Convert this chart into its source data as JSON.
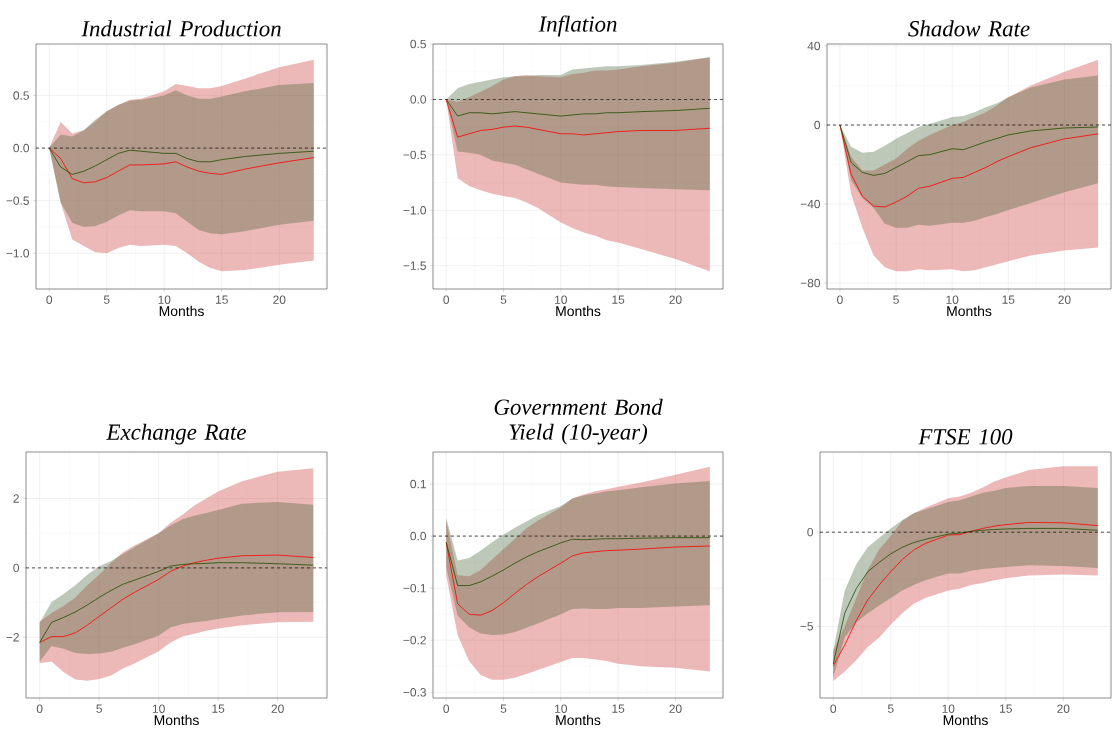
{
  "chart_data": [
    {
      "type": "line",
      "title": "Industrial Production",
      "xlabel": "Months",
      "x": [
        0,
        1,
        2,
        3,
        4,
        5,
        6,
        7,
        8,
        10,
        11,
        12,
        13,
        14,
        15,
        17,
        20,
        23
      ],
      "xlim": [
        -1.15,
        24.15
      ],
      "ylim": [
        -1.34,
        0.99
      ],
      "xticks": [
        0,
        5,
        10,
        15,
        20
      ],
      "yticks": [
        {
          "value": -1,
          "label": "−1.0"
        },
        {
          "value": -0.5,
          "label": "−0.5"
        },
        {
          "value": 0,
          "label": "0.0"
        },
        {
          "value": 0.5,
          "label": "0.5"
        }
      ],
      "grid": true,
      "ref_lines": [
        {
          "axis": "y",
          "value": 0,
          "line_style": "dashed",
          "color": "#000000"
        }
      ],
      "series": [
        {
          "color": "#ff0000",
          "values": [
            0,
            -0.1,
            -0.29,
            -0.33,
            -0.32,
            -0.28,
            -0.22,
            -0.16,
            -0.16,
            -0.15,
            -0.13,
            -0.18,
            -0.22,
            -0.24,
            -0.25,
            -0.2,
            -0.14,
            -0.09
          ],
          "lower": [
            0,
            -0.52,
            -0.87,
            -0.93,
            -0.99,
            -1.0,
            -0.95,
            -0.92,
            -0.93,
            -0.92,
            -0.93,
            -1.0,
            -1.08,
            -1.14,
            -1.17,
            -1.16,
            -1.11,
            -1.07
          ],
          "upper": [
            0,
            0.25,
            0.14,
            0.17,
            0.25,
            0.35,
            0.41,
            0.46,
            0.47,
            0.54,
            0.61,
            0.59,
            0.57,
            0.57,
            0.59,
            0.66,
            0.77,
            0.84
          ]
        },
        {
          "color": "#1f4e00",
          "values": [
            0,
            -0.18,
            -0.25,
            -0.22,
            -0.17,
            -0.11,
            -0.05,
            -0.02,
            -0.03,
            -0.05,
            -0.05,
            -0.1,
            -0.13,
            -0.13,
            -0.11,
            -0.08,
            -0.05,
            -0.03
          ],
          "lower": [
            0,
            -0.52,
            -0.71,
            -0.75,
            -0.74,
            -0.7,
            -0.64,
            -0.59,
            -0.6,
            -0.6,
            -0.62,
            -0.7,
            -0.78,
            -0.81,
            -0.82,
            -0.79,
            -0.73,
            -0.69
          ],
          "upper": [
            0,
            0.13,
            0.11,
            0.17,
            0.27,
            0.35,
            0.41,
            0.45,
            0.46,
            0.5,
            0.55,
            0.5,
            0.47,
            0.47,
            0.49,
            0.54,
            0.6,
            0.62
          ]
        }
      ]
    },
    {
      "type": "line",
      "title": "Inflation",
      "xlabel": "Months",
      "x": [
        0,
        1,
        2,
        3,
        4,
        5,
        6,
        7,
        8,
        10,
        11,
        12,
        13,
        14,
        15,
        17,
        20,
        23
      ],
      "xlim": [
        -1.15,
        24.15
      ],
      "ylim": [
        -1.71,
        0.5
      ],
      "xticks": [
        0,
        5,
        10,
        15,
        20
      ],
      "yticks": [
        {
          "value": -1.5,
          "label": "−1.5"
        },
        {
          "value": -1,
          "label": "−1.0"
        },
        {
          "value": -0.5,
          "label": "−0.5"
        },
        {
          "value": 0,
          "label": "0.0"
        },
        {
          "value": 0.5,
          "label": "0.5"
        }
      ],
      "grid": true,
      "ref_lines": [
        {
          "axis": "y",
          "value": 0,
          "line_style": "dashed",
          "color": "#000000"
        }
      ],
      "series": [
        {
          "color": "#ff0000",
          "values": [
            0,
            -0.34,
            -0.31,
            -0.28,
            -0.27,
            -0.25,
            -0.24,
            -0.25,
            -0.27,
            -0.31,
            -0.31,
            -0.32,
            -0.31,
            -0.3,
            -0.29,
            -0.28,
            -0.28,
            -0.26
          ],
          "lower": [
            0,
            -0.71,
            -0.78,
            -0.82,
            -0.85,
            -0.87,
            -0.89,
            -0.93,
            -0.98,
            -1.11,
            -1.16,
            -1.2,
            -1.23,
            -1.27,
            -1.29,
            -1.35,
            -1.44,
            -1.55
          ],
          "upper": [
            0,
            -0.02,
            0.02,
            0.07,
            0.12,
            0.18,
            0.21,
            0.22,
            0.21,
            0.2,
            0.23,
            0.24,
            0.26,
            0.26,
            0.27,
            0.3,
            0.33,
            0.38
          ]
        },
        {
          "color": "#1f4e00",
          "values": [
            0,
            -0.15,
            -0.12,
            -0.12,
            -0.13,
            -0.12,
            -0.11,
            -0.12,
            -0.13,
            -0.15,
            -0.14,
            -0.13,
            -0.13,
            -0.12,
            -0.12,
            -0.11,
            -0.1,
            -0.08
          ],
          "lower": [
            0,
            -0.47,
            -0.48,
            -0.5,
            -0.55,
            -0.57,
            -0.59,
            -0.63,
            -0.67,
            -0.75,
            -0.76,
            -0.77,
            -0.77,
            -0.785,
            -0.79,
            -0.8,
            -0.81,
            -0.82
          ],
          "upper": [
            0,
            0.1,
            0.14,
            0.16,
            0.18,
            0.2,
            0.21,
            0.21,
            0.22,
            0.22,
            0.27,
            0.28,
            0.29,
            0.3,
            0.3,
            0.31,
            0.34,
            0.38
          ]
        }
      ]
    },
    {
      "type": "line",
      "title": "Shadow Rate",
      "xlabel": "Months",
      "x": [
        0,
        1,
        2,
        3,
        4,
        5,
        6,
        7,
        8,
        10,
        11,
        12,
        13,
        14,
        15,
        17,
        20,
        23
      ],
      "xlim": [
        -1.15,
        24.15
      ],
      "ylim": [
        -83,
        41
      ],
      "xticks": [
        0,
        5,
        10,
        15,
        20
      ],
      "yticks": [
        {
          "value": -80,
          "label": "−80"
        },
        {
          "value": -40,
          "label": "−40"
        },
        0,
        40
      ],
      "grid": true,
      "ref_lines": [
        {
          "axis": "y",
          "value": 0,
          "line_style": "dashed",
          "color": "#000000"
        }
      ],
      "series": [
        {
          "color": "#ff0000",
          "values": [
            0,
            -25,
            -36,
            -41,
            -41.5,
            -39,
            -36,
            -32,
            -31,
            -27,
            -26.5,
            -24,
            -21.5,
            -18.5,
            -16,
            -11.5,
            -7,
            -4.5
          ],
          "lower": [
            0,
            -35,
            -52,
            -66,
            -72,
            -74,
            -74,
            -73,
            -73.5,
            -73,
            -74,
            -73.5,
            -72,
            -70.5,
            -69,
            -66,
            -63.5,
            -62
          ],
          "upper": [
            0,
            -16,
            -23,
            -23,
            -20,
            -17,
            -12,
            -8,
            -5,
            0,
            1.5,
            4,
            6.5,
            10,
            14,
            20,
            27,
            33
          ]
        },
        {
          "color": "#1f4e00",
          "values": [
            0,
            -19,
            -24,
            -25.5,
            -24.5,
            -21.5,
            -18.5,
            -15.5,
            -15,
            -12,
            -12.5,
            -10.5,
            -8.5,
            -6.8,
            -5,
            -3,
            -1.5,
            -1
          ],
          "lower": [
            0,
            -28,
            -37,
            -42,
            -50,
            -52,
            -52,
            -50.5,
            -51,
            -49.5,
            -49.5,
            -48.5,
            -46.5,
            -45,
            -43,
            -39.5,
            -34,
            -29.5
          ],
          "upper": [
            0,
            -11,
            -14,
            -13.5,
            -10.5,
            -7,
            -4,
            -1,
            0.5,
            4,
            4.5,
            6.5,
            9,
            11,
            14,
            19,
            23,
            25
          ]
        }
      ]
    },
    {
      "type": "line",
      "title": "Exchange Rate",
      "xlabel": "Months",
      "x": [
        0,
        1,
        2,
        3,
        4,
        5,
        6,
        7,
        8,
        10,
        11,
        12,
        13,
        14,
        15,
        17,
        20,
        23
      ],
      "xlim": [
        -1.15,
        24.15
      ],
      "ylim": [
        -3.75,
        3.34
      ],
      "xticks": [
        0,
        5,
        10,
        15,
        20
      ],
      "yticks": [
        {
          "value": -2,
          "label": "−2"
        },
        0,
        2
      ],
      "grid": true,
      "ref_lines": [
        {
          "axis": "y",
          "value": 0,
          "line_style": "dashed",
          "color": "#000000"
        }
      ],
      "series": [
        {
          "color": "#ff0000",
          "values": [
            -2.15,
            -1.98,
            -1.98,
            -1.87,
            -1.65,
            -1.4,
            -1.15,
            -0.9,
            -0.7,
            -0.33,
            -0.1,
            0.05,
            0.15,
            0.22,
            0.28,
            0.35,
            0.37,
            0.3
          ],
          "lower": [
            -2.75,
            -2.7,
            -3.0,
            -3.22,
            -3.25,
            -3.2,
            -3.1,
            -2.9,
            -2.75,
            -2.4,
            -2.15,
            -1.98,
            -1.9,
            -1.81,
            -1.75,
            -1.65,
            -1.57,
            -1.55
          ],
          "upper": [
            -1.55,
            -1.3,
            -1.1,
            -0.85,
            -0.5,
            -0.2,
            0.15,
            0.45,
            0.65,
            1.0,
            1.3,
            1.53,
            1.8,
            2.0,
            2.2,
            2.5,
            2.77,
            2.87
          ]
        },
        {
          "color": "#1f4e00",
          "values": [
            -2.15,
            -1.57,
            -1.43,
            -1.27,
            -1.07,
            -0.85,
            -0.65,
            -0.47,
            -0.35,
            -0.1,
            0.05,
            0.1,
            0.12,
            0.13,
            0.15,
            0.15,
            0.12,
            0.08
          ],
          "lower": [
            -2.7,
            -2.25,
            -2.33,
            -2.45,
            -2.48,
            -2.47,
            -2.42,
            -2.3,
            -2.2,
            -1.95,
            -1.72,
            -1.62,
            -1.57,
            -1.53,
            -1.47,
            -1.37,
            -1.28,
            -1.27
          ],
          "upper": [
            -1.58,
            -0.98,
            -0.75,
            -0.5,
            -0.2,
            0.05,
            0.2,
            0.4,
            0.6,
            1.0,
            1.22,
            1.4,
            1.5,
            1.58,
            1.67,
            1.85,
            1.9,
            1.82
          ]
        }
      ]
    },
    {
      "type": "line",
      "title": "Government Bond Yield (10-year)",
      "xlabel": "Months",
      "x": [
        0,
        1,
        2,
        3,
        4,
        5,
        6,
        7,
        8,
        10,
        11,
        12,
        13,
        14,
        15,
        17,
        20,
        23
      ],
      "xlim": [
        -1.15,
        24.15
      ],
      "ylim": [
        -0.311,
        0.1615
      ],
      "xticks": [
        0,
        5,
        10,
        15,
        20
      ],
      "yticks": [
        {
          "value": -0.3,
          "label": "−0.3"
        },
        {
          "value": -0.2,
          "label": "−0.2"
        },
        {
          "value": -0.1,
          "label": "−0.1"
        },
        {
          "value": 0,
          "label": "0.0"
        },
        0.1
      ],
      "grid": true,
      "ref_lines": [
        {
          "axis": "y",
          "value": 0,
          "line_style": "dashed",
          "color": "#000000"
        }
      ],
      "series": [
        {
          "color": "#ff0000",
          "values": [
            -0.012,
            -0.13,
            -0.15,
            -0.152,
            -0.143,
            -0.128,
            -0.11,
            -0.093,
            -0.078,
            -0.052,
            -0.038,
            -0.032,
            -0.03,
            -0.028,
            -0.027,
            -0.025,
            -0.021,
            -0.019
          ],
          "lower": [
            -0.075,
            -0.19,
            -0.24,
            -0.267,
            -0.276,
            -0.276,
            -0.272,
            -0.265,
            -0.257,
            -0.242,
            -0.234,
            -0.234,
            -0.237,
            -0.24,
            -0.245,
            -0.25,
            -0.253,
            -0.26
          ],
          "upper": [
            0.03,
            -0.075,
            -0.077,
            -0.065,
            -0.045,
            -0.025,
            -0.005,
            0.015,
            0.03,
            0.055,
            0.072,
            0.08,
            0.086,
            0.09,
            0.095,
            0.103,
            0.118,
            0.133
          ]
        },
        {
          "color": "#1f4e00",
          "values": [
            -0.012,
            -0.095,
            -0.095,
            -0.088,
            -0.077,
            -0.065,
            -0.052,
            -0.04,
            -0.03,
            -0.013,
            -0.006,
            -0.007,
            -0.006,
            -0.005,
            -0.005,
            -0.004,
            -0.003,
            -0.003
          ],
          "lower": [
            -0.06,
            -0.153,
            -0.175,
            -0.187,
            -0.19,
            -0.189,
            -0.184,
            -0.176,
            -0.168,
            -0.15,
            -0.14,
            -0.139,
            -0.14,
            -0.14,
            -0.138,
            -0.138,
            -0.135,
            -0.133
          ],
          "upper": [
            0.035,
            -0.047,
            -0.042,
            -0.028,
            -0.012,
            0.003,
            0.016,
            0.028,
            0.04,
            0.058,
            0.072,
            0.078,
            0.082,
            0.086,
            0.088,
            0.094,
            0.101,
            0.106
          ]
        }
      ]
    },
    {
      "type": "line",
      "title": "FTSE 100",
      "xlabel": "Months",
      "x": [
        0,
        1,
        2,
        3,
        4,
        5,
        6,
        7,
        8,
        10,
        11,
        12,
        13,
        14,
        15,
        17,
        20,
        23
      ],
      "xlim": [
        -1.15,
        24.15
      ],
      "ylim": [
        -8.81,
        4.26
      ],
      "xticks": [
        0,
        5,
        10,
        15,
        20
      ],
      "yticks": [
        {
          "value": -5,
          "label": "−5"
        },
        0
      ],
      "grid": true,
      "ref_lines": [
        {
          "axis": "y",
          "value": 0,
          "line_style": "dashed",
          "color": "#000000"
        }
      ],
      "series": [
        {
          "color": "#ff0000",
          "values": [
            -7.1,
            -6.0,
            -4.7,
            -3.6,
            -2.8,
            -2.1,
            -1.45,
            -0.95,
            -0.6,
            -0.15,
            -0.13,
            0.05,
            0.2,
            0.32,
            0.4,
            0.52,
            0.5,
            0.35
          ],
          "lower": [
            -7.9,
            -7.4,
            -6.8,
            -6.1,
            -5.6,
            -4.9,
            -4.3,
            -3.8,
            -3.5,
            -3.1,
            -3.0,
            -2.8,
            -2.7,
            -2.55,
            -2.45,
            -2.3,
            -2.25,
            -2.3
          ],
          "upper": [
            -6.3,
            -5.0,
            -3.5,
            -2.0,
            -0.9,
            -0.2,
            0.6,
            1.0,
            1.3,
            1.8,
            1.9,
            2.1,
            2.38,
            2.7,
            2.9,
            3.3,
            3.5,
            3.5
          ]
        },
        {
          "color": "#1f4e00",
          "values": [
            -7.0,
            -4.3,
            -3.0,
            -2.1,
            -1.6,
            -1.15,
            -0.8,
            -0.55,
            -0.38,
            -0.1,
            -0.05,
            0.05,
            0.1,
            0.14,
            0.17,
            0.2,
            0.2,
            0.1
          ],
          "lower": [
            -7.7,
            -5.6,
            -4.8,
            -4.3,
            -3.9,
            -3.5,
            -3.1,
            -2.8,
            -2.55,
            -2.2,
            -2.2,
            -2.05,
            -1.95,
            -1.9,
            -1.85,
            -1.75,
            -1.8,
            -1.9
          ],
          "upper": [
            -6.3,
            -3.1,
            -1.7,
            -0.8,
            -0.3,
            0.2,
            0.65,
            1.0,
            1.2,
            1.6,
            1.7,
            1.9,
            2.1,
            2.2,
            2.35,
            2.45,
            2.45,
            2.35
          ]
        }
      ]
    }
  ]
}
